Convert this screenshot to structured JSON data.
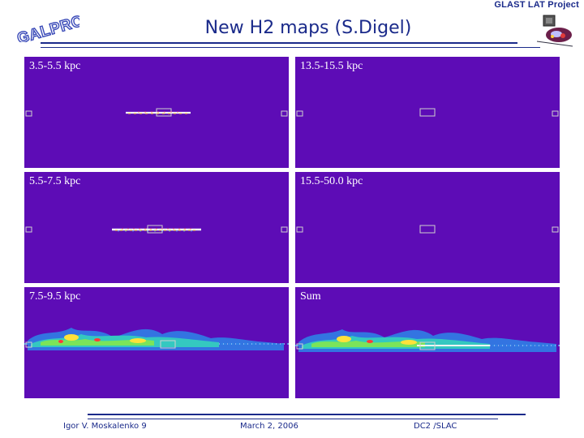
{
  "header": {
    "logo_text": "GALPROP",
    "title": "New H2 maps (S.Digel)",
    "project_label": "GLAST LAT Project"
  },
  "panels": [
    {
      "label": "3.5-5.5 kpc"
    },
    {
      "label": "13.5-15.5 kpc"
    },
    {
      "label": "5.5-7.5 kpc"
    },
    {
      "label": "15.5-50.0 kpc"
    },
    {
      "label": "7.5-9.5 kpc"
    },
    {
      "label": "Sum"
    }
  ],
  "footer": {
    "author": "Igor V. Moskalenko 9",
    "date": "March 2, 2006",
    "venue": "DC2 /SLAC"
  },
  "colors": {
    "panel_bg": "#5d0cb6",
    "heading": "#1a2a8a",
    "logo": "#3a4ab8"
  }
}
